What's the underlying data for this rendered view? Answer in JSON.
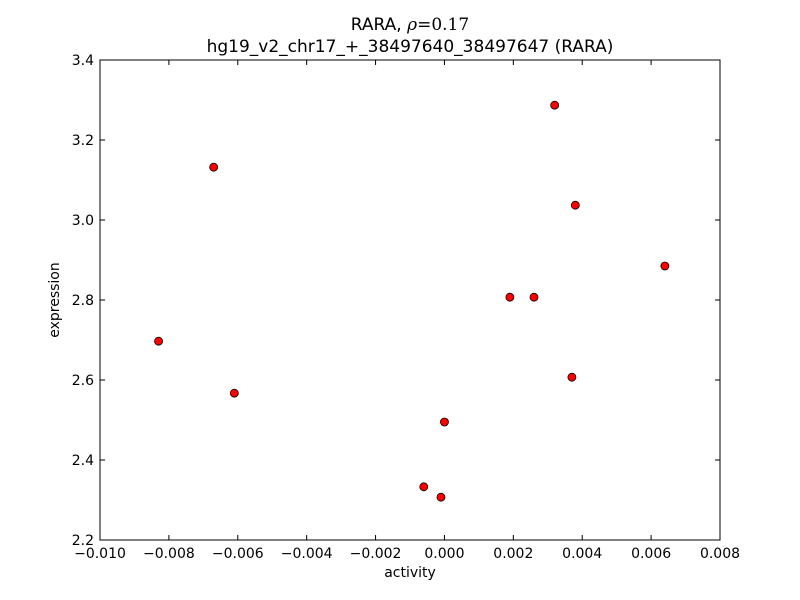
{
  "chart_data": {
    "type": "scatter",
    "title_line1": {
      "prefix": "RARA, ",
      "rho_symbol": "ρ",
      "rho_value": "=0.17"
    },
    "title_line2": "hg19_v2_chr17_+_38497640_38497647 (RARA)",
    "xlabel": "activity",
    "ylabel": "expression",
    "xlim": [
      -0.01,
      0.008
    ],
    "ylim": [
      2.2,
      3.4
    ],
    "x_ticks": [
      -0.01,
      -0.008,
      -0.006,
      -0.004,
      -0.002,
      0.0,
      0.002,
      0.004,
      0.006,
      0.008
    ],
    "x_tick_labels": [
      "−0.010",
      "−0.008",
      "−0.006",
      "−0.004",
      "−0.002",
      "0.000",
      "0.002",
      "0.004",
      "0.006",
      "0.008"
    ],
    "y_ticks": [
      2.2,
      2.4,
      2.6,
      2.8,
      3.0,
      3.2,
      3.4
    ],
    "y_tick_labels": [
      "2.2",
      "2.4",
      "2.6",
      "2.8",
      "3.0",
      "3.2",
      "3.4"
    ],
    "point_color": "#ff0000",
    "point_edge_color": "#000000",
    "points": [
      {
        "x": -0.0083,
        "y": 2.697
      },
      {
        "x": -0.0067,
        "y": 3.132
      },
      {
        "x": -0.0061,
        "y": 2.567
      },
      {
        "x": -0.0006,
        "y": 2.333
      },
      {
        "x": -0.0001,
        "y": 2.307
      },
      {
        "x": 0.0,
        "y": 2.495
      },
      {
        "x": 0.0019,
        "y": 2.807
      },
      {
        "x": 0.0026,
        "y": 2.807
      },
      {
        "x": 0.0032,
        "y": 3.287
      },
      {
        "x": 0.0037,
        "y": 2.607
      },
      {
        "x": 0.0038,
        "y": 3.037
      },
      {
        "x": 0.0064,
        "y": 2.885
      }
    ]
  }
}
